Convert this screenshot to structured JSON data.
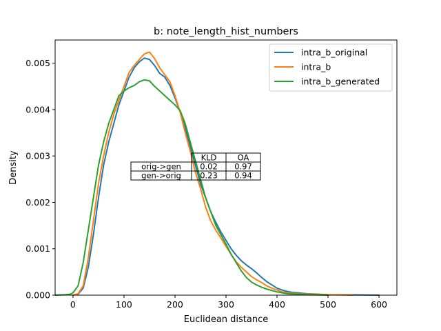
{
  "chart_data": {
    "type": "line",
    "title": "b: note_length_hist_numbers",
    "xlabel": "Euclidean distance",
    "ylabel": "Density",
    "xlim": [
      -35,
      635
    ],
    "ylim": [
      0,
      0.0055
    ],
    "x_ticks": [
      0,
      100,
      200,
      300,
      400,
      500,
      600
    ],
    "x_tick_labels": [
      "0",
      "100",
      "200",
      "300",
      "400",
      "500",
      "600"
    ],
    "y_ticks": [
      0,
      0.001,
      0.002,
      0.003,
      0.004,
      0.005
    ],
    "y_tick_labels": [
      "0.000",
      "0.001",
      "0.002",
      "0.003",
      "0.004",
      "0.005"
    ],
    "grid": false,
    "legend_position": "top-right",
    "series": [
      {
        "name": "intra_b_original",
        "color": "#1f77b4",
        "points": [
          [
            0,
            0
          ],
          [
            10,
            2e-05
          ],
          [
            20,
            0.00015
          ],
          [
            30,
            0.0006
          ],
          [
            40,
            0.0013
          ],
          [
            50,
            0.0021
          ],
          [
            60,
            0.0028
          ],
          [
            70,
            0.0033
          ],
          [
            80,
            0.0037
          ],
          [
            90,
            0.0041
          ],
          [
            100,
            0.0044
          ],
          [
            110,
            0.0047
          ],
          [
            120,
            0.0049
          ],
          [
            130,
            0.00503
          ],
          [
            140,
            0.00511
          ],
          [
            150,
            0.00508
          ],
          [
            160,
            0.00495
          ],
          [
            170,
            0.00478
          ],
          [
            180,
            0.0047
          ],
          [
            190,
            0.00452
          ],
          [
            200,
            0.00425
          ],
          [
            210,
            0.00395
          ],
          [
            220,
            0.0036
          ],
          [
            230,
            0.0032
          ],
          [
            240,
            0.0028
          ],
          [
            250,
            0.0024
          ],
          [
            260,
            0.0021
          ],
          [
            270,
            0.0018
          ],
          [
            280,
            0.00157
          ],
          [
            290,
            0.00136
          ],
          [
            300,
            0.00118
          ],
          [
            310,
            0.001
          ],
          [
            320,
            0.00086
          ],
          [
            330,
            0.00074
          ],
          [
            340,
            0.00065
          ],
          [
            350,
            0.00057
          ],
          [
            360,
            0.00048
          ],
          [
            370,
            0.00038
          ],
          [
            380,
            0.00029
          ],
          [
            390,
            0.00022
          ],
          [
            400,
            0.00015
          ],
          [
            410,
            0.00011
          ],
          [
            420,
            8e-05
          ],
          [
            430,
            6e-05
          ],
          [
            440,
            5e-05
          ],
          [
            460,
            3e-05
          ],
          [
            480,
            2e-05
          ],
          [
            500,
            1e-05
          ],
          [
            550,
            5e-06
          ],
          [
            600,
            0
          ]
        ]
      },
      {
        "name": "intra_b",
        "color": "#ff7f0e",
        "points": [
          [
            0,
            0
          ],
          [
            10,
            3e-05
          ],
          [
            20,
            0.0002
          ],
          [
            30,
            0.0008
          ],
          [
            40,
            0.0016
          ],
          [
            50,
            0.0024
          ],
          [
            60,
            0.003
          ],
          [
            70,
            0.0035
          ],
          [
            80,
            0.0039
          ],
          [
            90,
            0.0042
          ],
          [
            100,
            0.0045
          ],
          [
            110,
            0.0048
          ],
          [
            120,
            0.00495
          ],
          [
            130,
            0.00508
          ],
          [
            140,
            0.0052
          ],
          [
            150,
            0.00524
          ],
          [
            160,
            0.0051
          ],
          [
            170,
            0.0049
          ],
          [
            180,
            0.00475
          ],
          [
            190,
            0.0046
          ],
          [
            200,
            0.0043
          ],
          [
            210,
            0.00395
          ],
          [
            220,
            0.0035
          ],
          [
            230,
            0.0031
          ],
          [
            240,
            0.00265
          ],
          [
            250,
            0.0023
          ],
          [
            260,
            0.0019
          ],
          [
            270,
            0.0016
          ],
          [
            280,
            0.0014
          ],
          [
            290,
            0.00123
          ],
          [
            300,
            0.00105
          ],
          [
            310,
            0.00088
          ],
          [
            320,
            0.00072
          ],
          [
            330,
            0.0006
          ],
          [
            340,
            0.0005
          ],
          [
            350,
            0.0004
          ],
          [
            360,
            0.00033
          ],
          [
            370,
            0.00027
          ],
          [
            380,
            0.0002
          ],
          [
            390,
            0.00015
          ],
          [
            400,
            0.00011
          ],
          [
            410,
            7e-05
          ],
          [
            420,
            5e-05
          ],
          [
            440,
            3e-05
          ],
          [
            460,
            2e-05
          ],
          [
            500,
            1e-05
          ],
          [
            550,
            0
          ]
        ]
      },
      {
        "name": "intra_b_generated",
        "color": "#2ca02c",
        "points": [
          [
            -35,
            0
          ],
          [
            -15,
            1e-05
          ],
          [
            -5,
            2e-05
          ],
          [
            0,
            5e-05
          ],
          [
            10,
            0.0002
          ],
          [
            20,
            0.0007
          ],
          [
            30,
            0.0014
          ],
          [
            40,
            0.0021
          ],
          [
            50,
            0.0028
          ],
          [
            60,
            0.0033
          ],
          [
            70,
            0.0037
          ],
          [
            80,
            0.004
          ],
          [
            90,
            0.0043
          ],
          [
            100,
            0.0044
          ],
          [
            110,
            0.00447
          ],
          [
            120,
            0.00452
          ],
          [
            130,
            0.0046
          ],
          [
            140,
            0.00464
          ],
          [
            150,
            0.00462
          ],
          [
            160,
            0.0045
          ],
          [
            170,
            0.0044
          ],
          [
            180,
            0.0043
          ],
          [
            190,
            0.0042
          ],
          [
            200,
            0.0041
          ],
          [
            210,
            0.00398
          ],
          [
            220,
            0.0037
          ],
          [
            230,
            0.0033
          ],
          [
            240,
            0.0029
          ],
          [
            250,
            0.0025
          ],
          [
            260,
            0.0021
          ],
          [
            270,
            0.0018
          ],
          [
            280,
            0.0015
          ],
          [
            290,
            0.0013
          ],
          [
            300,
            0.0011
          ],
          [
            310,
            0.00088
          ],
          [
            320,
            0.0007
          ],
          [
            330,
            0.00052
          ],
          [
            340,
            0.00038
          ],
          [
            350,
            0.00028
          ],
          [
            360,
            0.00022
          ],
          [
            370,
            0.00017
          ],
          [
            380,
            0.00013
          ],
          [
            390,
            0.0001
          ],
          [
            400,
            7e-05
          ],
          [
            410,
            5e-05
          ],
          [
            420,
            3e-05
          ],
          [
            440,
            2e-05
          ],
          [
            460,
            1e-05
          ],
          [
            500,
            0
          ]
        ]
      }
    ],
    "table": {
      "columns": [
        "",
        "KLD",
        "OA"
      ],
      "rows": [
        [
          "orig->gen",
          "0.02",
          "0.97"
        ],
        [
          "gen->orig",
          "0.23",
          "0.94"
        ]
      ]
    }
  }
}
